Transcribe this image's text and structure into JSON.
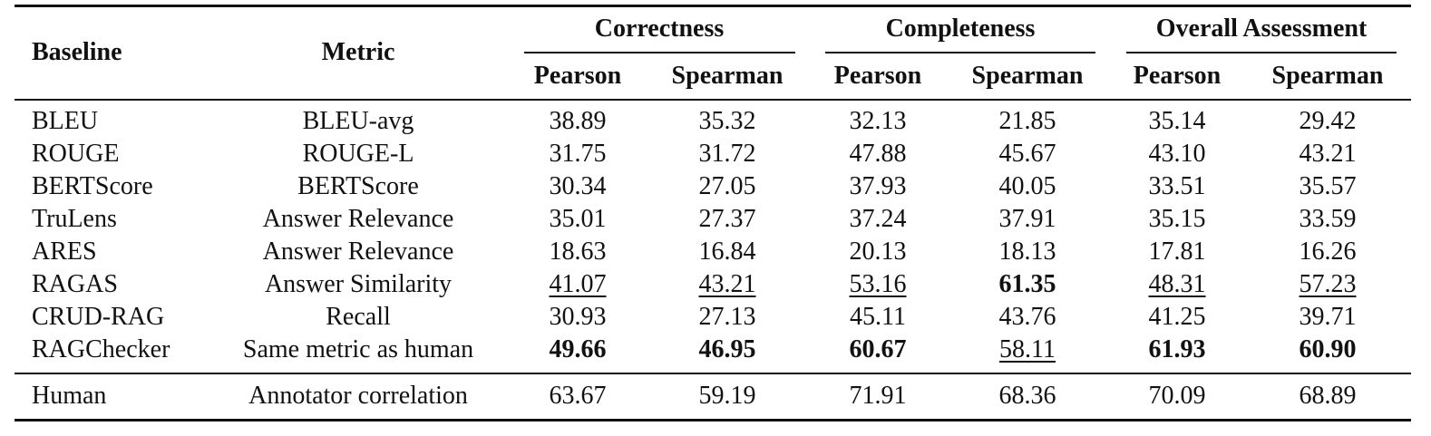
{
  "table": {
    "header": {
      "baseline": "Baseline",
      "metric": "Metric",
      "groups": [
        "Correctness",
        "Completeness",
        "Overall Assessment"
      ],
      "subheaders": [
        "Pearson",
        "Spearman",
        "Pearson",
        "Spearman",
        "Pearson",
        "Spearman"
      ]
    },
    "rows": [
      [
        "BLEU",
        "BLEU-avg",
        "38.89",
        "35.32",
        "32.13",
        "21.85",
        "35.14",
        "29.42"
      ],
      [
        "ROUGE",
        "ROUGE-L",
        "31.75",
        "31.72",
        "47.88",
        "45.67",
        "43.10",
        "43.21"
      ],
      [
        "BERTScore",
        "BERTScore",
        "30.34",
        "27.05",
        "37.93",
        "40.05",
        "33.51",
        "35.57"
      ],
      [
        "TruLens",
        "Answer Relevance",
        "35.01",
        "27.37",
        "37.24",
        "37.91",
        "35.15",
        "33.59"
      ],
      [
        "ARES",
        "Answer Relevance",
        "18.63",
        "16.84",
        "20.13",
        "18.13",
        "17.81",
        "16.26"
      ],
      [
        "RAGAS",
        "Answer Similarity",
        "41.07",
        "43.21",
        "53.16",
        "61.35",
        "48.31",
        "57.23"
      ],
      [
        "CRUD-RAG",
        "Recall",
        "30.93",
        "27.13",
        "45.11",
        "43.76",
        "41.25",
        "39.71"
      ],
      [
        "RAGChecker",
        "Same metric as human",
        "49.66",
        "46.95",
        "60.67",
        "58.11",
        "61.93",
        "60.90"
      ],
      [
        "Human",
        "Annotator correlation",
        "63.67",
        "59.19",
        "71.91",
        "68.36",
        "70.09",
        "68.89"
      ]
    ]
  }
}
